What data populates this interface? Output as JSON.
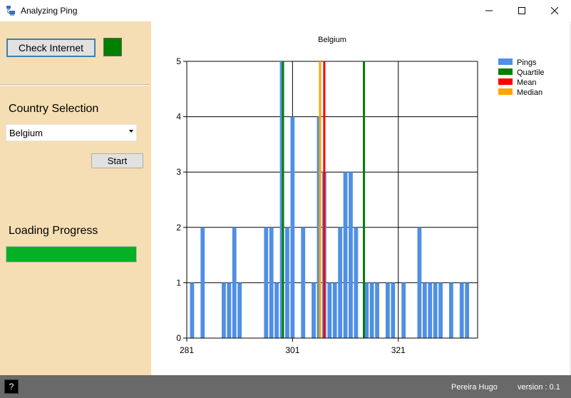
{
  "window": {
    "title": "Analyzing Ping",
    "icons": {
      "app": "app-icon",
      "minimize": "minimize-icon",
      "maximize": "maximize-icon",
      "close": "close-icon"
    }
  },
  "left_panel": {
    "check_internet_label": "Check Internet",
    "internet_status_color": "#008000",
    "country_selection_label": "Country Selection",
    "country_selected": "Belgium",
    "start_label": "Start",
    "loading_progress_label": "Loading Progress",
    "progress_fraction": 1.0,
    "progress_color": "#06b025"
  },
  "status_bar": {
    "help_label": "?",
    "author": "Pereira Hugo",
    "version": "version : 0.1"
  },
  "chart_data": {
    "type": "bar",
    "title": "Belgium",
    "xlabel": "",
    "ylabel": "",
    "xlim": [
      281,
      336
    ],
    "ylim": [
      0,
      5
    ],
    "x_ticks": [
      281,
      301,
      321
    ],
    "y_ticks": [
      0,
      1,
      2,
      3,
      4,
      5
    ],
    "grid": true,
    "legend_placement": "top-right",
    "series": [
      {
        "name": "Pings",
        "color": "#4f8fe6",
        "x": [
          282,
          284,
          288,
          289,
          290,
          291,
          296,
          297,
          298,
          299,
          300,
          301,
          303,
          305,
          306,
          307,
          308,
          309,
          310,
          311,
          312,
          313,
          315,
          316,
          317,
          319,
          320,
          322,
          325,
          326,
          327,
          328,
          329,
          331,
          333,
          334
        ],
        "values": [
          1,
          2,
          1,
          1,
          2,
          1,
          2,
          2,
          1,
          5,
          2,
          4,
          2,
          1,
          4,
          3,
          1,
          1,
          2,
          3,
          3,
          2,
          1,
          1,
          1,
          1,
          1,
          1,
          2,
          1,
          1,
          1,
          1,
          1,
          1,
          1
        ]
      },
      {
        "name": "Quartile",
        "color": "#008000",
        "lines": [
          299.2,
          314.5
        ]
      },
      {
        "name": "Mean",
        "color": "#ff0000",
        "lines": [
          307.0
        ]
      },
      {
        "name": "Median",
        "color": "#ffa500",
        "lines": [
          306.2
        ]
      }
    ]
  }
}
